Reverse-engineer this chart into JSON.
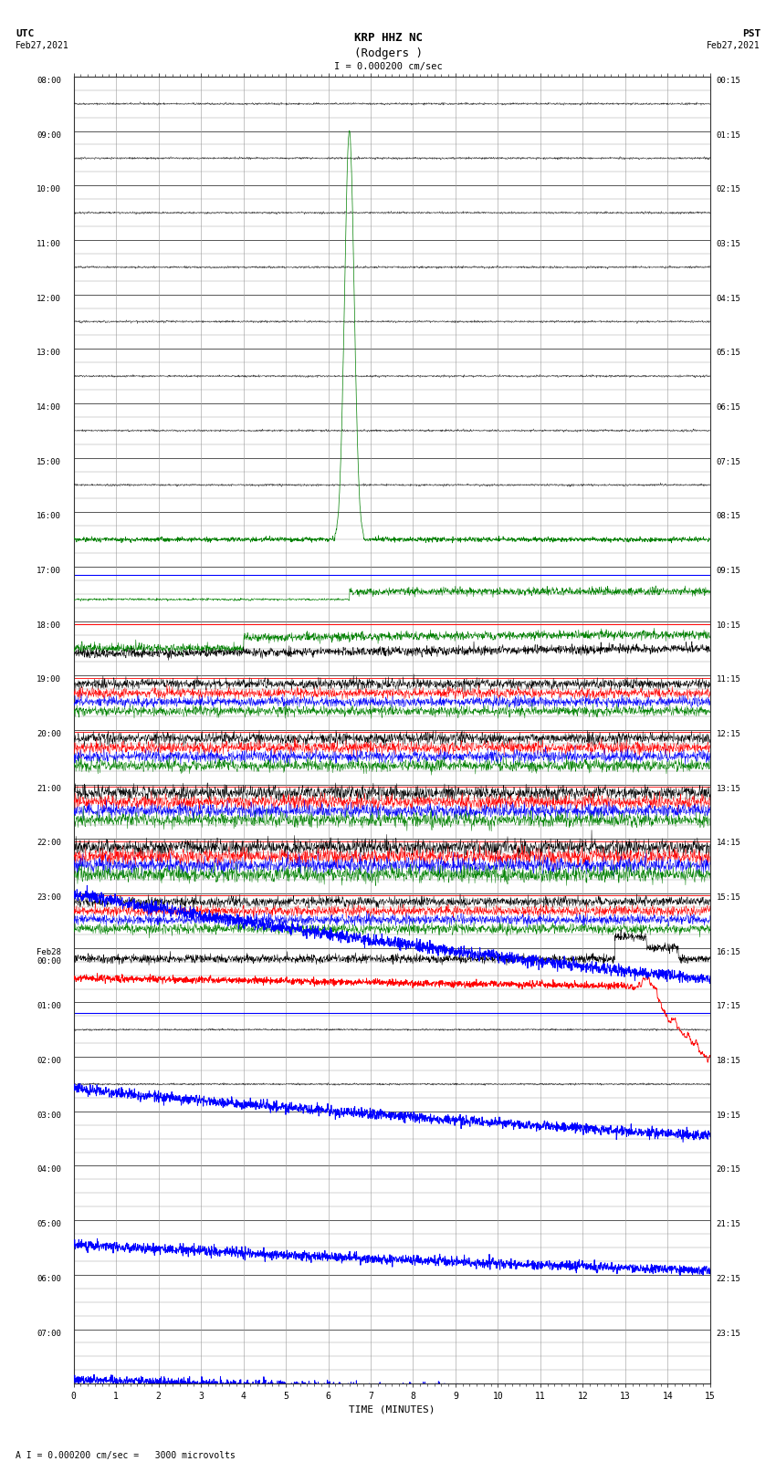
{
  "title_line1": "KRP HHZ NC",
  "title_line2": "(Rodgers )",
  "scale_label": "I = 0.000200 cm/sec",
  "bottom_label": "A I = 0.000200 cm/sec =   3000 microvolts",
  "utc_label": "UTC",
  "utc_date": "Feb27,2021",
  "pst_label": "PST",
  "pst_date": "Feb27,2021",
  "xlabel": "TIME (MINUTES)",
  "left_times_utc": [
    "08:00",
    "09:00",
    "10:00",
    "11:00",
    "12:00",
    "13:00",
    "14:00",
    "15:00",
    "16:00",
    "17:00",
    "18:00",
    "19:00",
    "20:00",
    "21:00",
    "22:00",
    "23:00",
    "Feb28\n00:00",
    "01:00",
    "02:00",
    "03:00",
    "04:00",
    "05:00",
    "06:00",
    "07:00"
  ],
  "right_times_pst": [
    "00:15",
    "01:15",
    "02:15",
    "03:15",
    "04:15",
    "05:15",
    "06:15",
    "07:15",
    "08:15",
    "09:15",
    "10:15",
    "11:15",
    "12:15",
    "13:15",
    "14:15",
    "15:15",
    "16:15",
    "17:15",
    "18:15",
    "19:15",
    "20:15",
    "21:15",
    "22:15",
    "23:15"
  ],
  "num_rows": 24,
  "xmin": 0,
  "xmax": 15,
  "xticks": [
    0,
    1,
    2,
    3,
    4,
    5,
    6,
    7,
    8,
    9,
    10,
    11,
    12,
    13,
    14,
    15
  ],
  "bg_color": "#ffffff",
  "figure_width": 8.5,
  "figure_height": 16.13,
  "dpi": 100
}
